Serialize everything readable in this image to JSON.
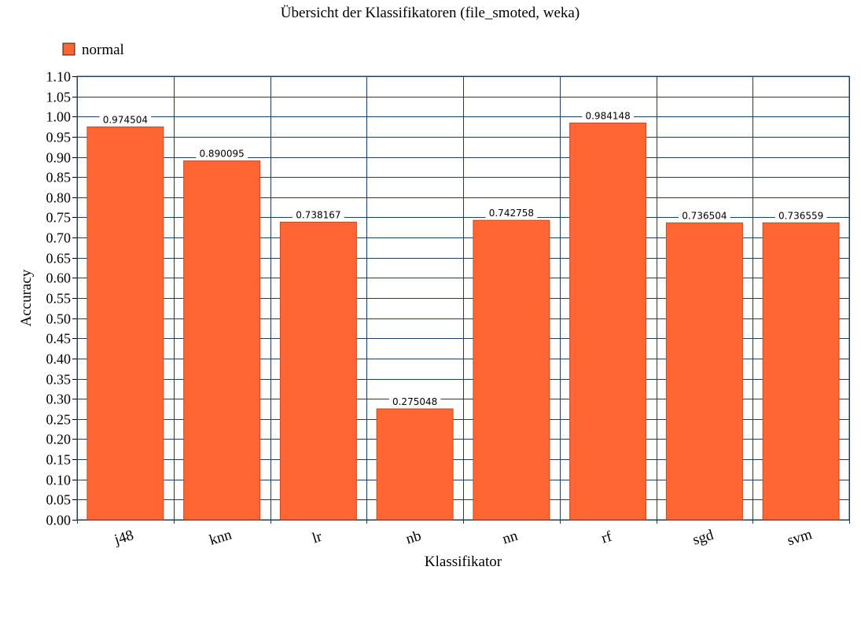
{
  "chart_data": {
    "type": "bar",
    "title": "Übersicht der Klassifikatoren (file_smoted, weka)",
    "xlabel": "Klassifikator",
    "ylabel": "Accuracy",
    "categories": [
      "j48",
      "knn",
      "lr",
      "nb",
      "nn",
      "rf",
      "sgd",
      "svm"
    ],
    "series": [
      {
        "name": "normal",
        "color": "#ff6633",
        "values": [
          0.974504,
          0.890095,
          0.738167,
          0.275048,
          0.742758,
          0.984148,
          0.736504,
          0.736559
        ],
        "labels": [
          "0.974504",
          "0.890095",
          "0.738167",
          "0.275048",
          "0.742758",
          "0.984148",
          "0.736504",
          "0.736559"
        ]
      }
    ],
    "ylim": [
      0,
      1.1
    ],
    "ytick_step": 0.05,
    "grid": true,
    "legend": "top-left",
    "grid_color": "#1f3f5f"
  }
}
